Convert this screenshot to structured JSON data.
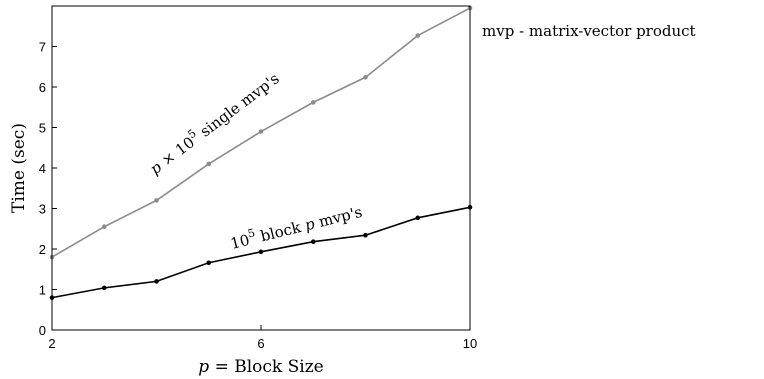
{
  "chart_data": {
    "type": "line",
    "xlabel": "p = Block Size",
    "ylabel": "Time (sec)",
    "xlim": [
      2,
      10
    ],
    "ylim": [
      0,
      8
    ],
    "xticks": [
      2,
      6,
      10
    ],
    "yticks": [
      0,
      1,
      2,
      3,
      4,
      5,
      6,
      7
    ],
    "x": [
      2,
      3,
      4,
      5,
      6,
      7,
      8,
      9,
      10
    ],
    "series": [
      {
        "values": [
          1.8,
          2.55,
          3.2,
          4.1,
          4.9,
          5.62,
          6.24,
          7.27,
          7.95
        ],
        "color": "#8c8c8c"
      },
      {
        "values": [
          0.8,
          1.04,
          1.2,
          1.66,
          1.93,
          2.18,
          2.34,
          2.77,
          3.03
        ],
        "color": "#000000"
      }
    ],
    "annotations": {
      "gray": "p × 10⁵ single mvp's",
      "black": "10⁵ block p mvp's"
    },
    "grid": false
  },
  "note": "mvp - matrix-vector product"
}
